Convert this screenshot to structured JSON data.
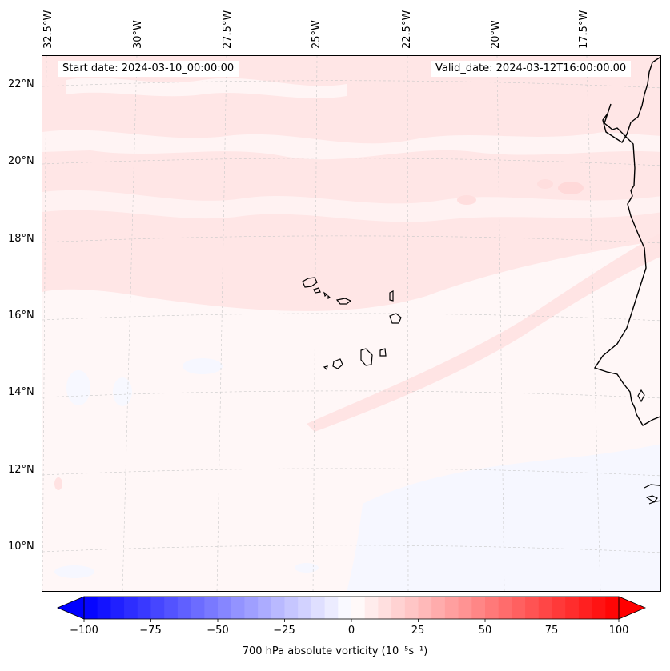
{
  "map": {
    "start_date": "Start date: 2024-03-10_00:00:00",
    "valid_date": "Valid_date: 2024-03-12T16:00:00.00",
    "lon_labels": [
      "32.5°W",
      "30°W",
      "27.5°W",
      "25°W",
      "22.5°W",
      "20°W",
      "17.5°W"
    ],
    "lat_labels": [
      "22°N",
      "20°N",
      "18°N",
      "16°N",
      "14°N",
      "12°N",
      "10°N"
    ]
  },
  "colorbar": {
    "title": "700 hPa absolute vorticity (10⁻⁵s⁻¹)",
    "ticks": [
      "−100",
      "−75",
      "−50",
      "−25",
      "0",
      "25",
      "50",
      "75",
      "100"
    ],
    "min": -100,
    "max": 100,
    "neg_color": "#0000ff",
    "pos_color": "#ff0000"
  }
}
